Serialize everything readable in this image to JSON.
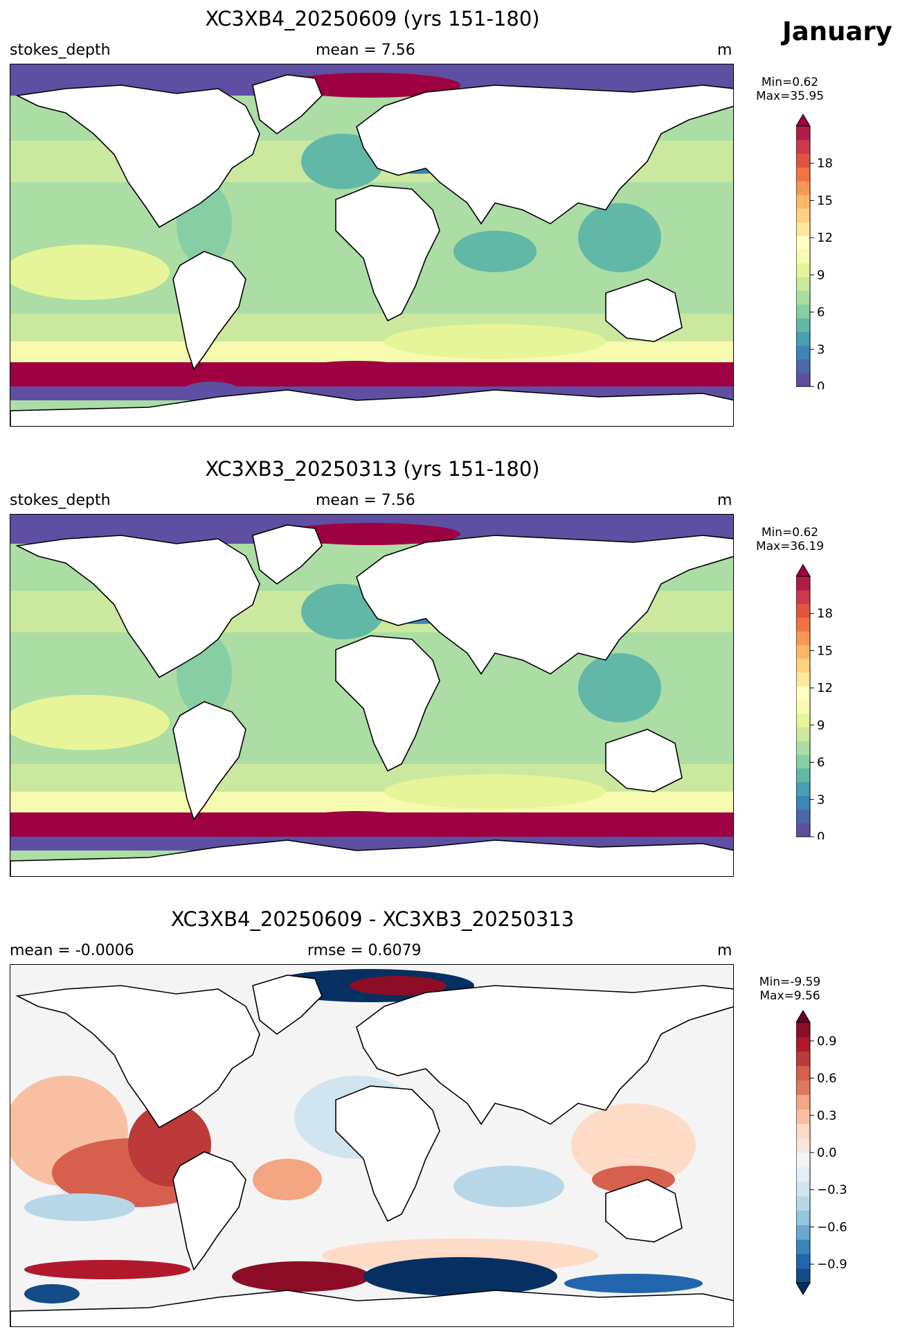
{
  "month": "January",
  "panels": [
    {
      "title": "XC3XB4_20250609 (yrs 151-180)",
      "left_label": "stokes_depth",
      "center_label": "mean = 7.56",
      "right_label": "m",
      "minmax": [
        "Min=0.62",
        "Max=35.95"
      ],
      "colorbar": {
        "ticks": [
          "0",
          "3",
          "6",
          "9",
          "12",
          "15",
          "18"
        ],
        "colors": [
          "#5e4fa2",
          "#4b68af",
          "#3d84b9",
          "#45a0b1",
          "#62b8a7",
          "#87cea5",
          "#abdda4",
          "#cbe99e",
          "#e6f598",
          "#f7fbaf",
          "#ffffbf",
          "#fee99a",
          "#fed27e",
          "#fdb867",
          "#f99654",
          "#f27444",
          "#e2543f",
          "#cf384c",
          "#b21d47",
          "#9e0142"
        ],
        "extend": "max"
      }
    },
    {
      "title": "XC3XB3_20250313 (yrs 151-180)",
      "left_label": "stokes_depth",
      "center_label": "mean = 7.56",
      "right_label": "m",
      "minmax": [
        "Min=0.62",
        "Max=36.19"
      ],
      "colorbar": {
        "ticks": [
          "0",
          "3",
          "6",
          "9",
          "12",
          "15",
          "18"
        ],
        "colors": [
          "#5e4fa2",
          "#4b68af",
          "#3d84b9",
          "#45a0b1",
          "#62b8a7",
          "#87cea5",
          "#abdda4",
          "#cbe99e",
          "#e6f598",
          "#f7fbaf",
          "#ffffbf",
          "#fee99a",
          "#fed27e",
          "#fdb867",
          "#f99654",
          "#f27444",
          "#e2543f",
          "#cf384c",
          "#b21d47",
          "#9e0142"
        ],
        "extend": "max"
      }
    },
    {
      "title": "XC3XB4_20250609 - XC3XB3_20250313",
      "left_label": "mean = -0.0006",
      "center_label": "rmse = 0.6079",
      "right_label": "m",
      "minmax": [
        "Min=-9.59",
        "Max=9.56"
      ],
      "colorbar": {
        "ticks": [
          "−0.9",
          "−0.6",
          "−0.3",
          "0.0",
          "0.3",
          "0.6",
          "0.9"
        ],
        "colors": [
          "#053061",
          "#144c87",
          "#2166ac",
          "#3a84bb",
          "#6aa8cf",
          "#92c5de",
          "#b7d7e8",
          "#d1e5f0",
          "#e4eef5",
          "#f4f4f4",
          "#f8e6dc",
          "#fddbc7",
          "#f8bfa3",
          "#f4a582",
          "#e0785e",
          "#d6604d",
          "#bc3a3a",
          "#b2182b",
          "#8c0d25",
          "#67001f"
        ],
        "extend": "both"
      }
    }
  ]
}
